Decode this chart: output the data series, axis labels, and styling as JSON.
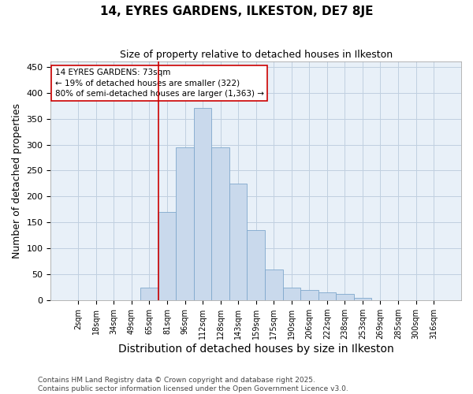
{
  "title": "14, EYRES GARDENS, ILKESTON, DE7 8JE",
  "subtitle": "Size of property relative to detached houses in Ilkeston",
  "xlabel": "Distribution of detached houses by size in Ilkeston",
  "ylabel": "Number of detached properties",
  "bar_labels": [
    "2sqm",
    "18sqm",
    "34sqm",
    "49sqm",
    "65sqm",
    "81sqm",
    "96sqm",
    "112sqm",
    "128sqm",
    "143sqm",
    "159sqm",
    "175sqm",
    "190sqm",
    "206sqm",
    "222sqm",
    "238sqm",
    "253sqm",
    "269sqm",
    "285sqm",
    "300sqm",
    "316sqm"
  ],
  "bar_values": [
    0,
    0,
    0,
    0,
    25,
    170,
    295,
    370,
    295,
    225,
    135,
    60,
    25,
    20,
    15,
    13,
    5,
    0,
    0,
    0,
    0
  ],
  "bar_color": "#c9d9ec",
  "bar_edge_color": "#7fa8cc",
  "grid_color": "#c0d0e0",
  "background_color": "#e8f0f8",
  "ylim": [
    0,
    460
  ],
  "yticks": [
    0,
    50,
    100,
    150,
    200,
    250,
    300,
    350,
    400,
    450
  ],
  "annotation_text": "14 EYRES GARDENS: 73sqm\n← 19% of detached houses are smaller (322)\n80% of semi-detached houses are larger (1,363) →",
  "footer_text": "Contains HM Land Registry data © Crown copyright and database right 2025.\nContains public sector information licensed under the Open Government Licence v3.0.",
  "vline_color": "#cc0000",
  "annotation_box_edge": "#cc0000",
  "title_fontsize": 11,
  "subtitle_fontsize": 9,
  "axis_label_fontsize": 9,
  "tick_fontsize": 7,
  "annotation_fontsize": 7.5,
  "footer_fontsize": 6.5,
  "vline_bar_index": 5
}
